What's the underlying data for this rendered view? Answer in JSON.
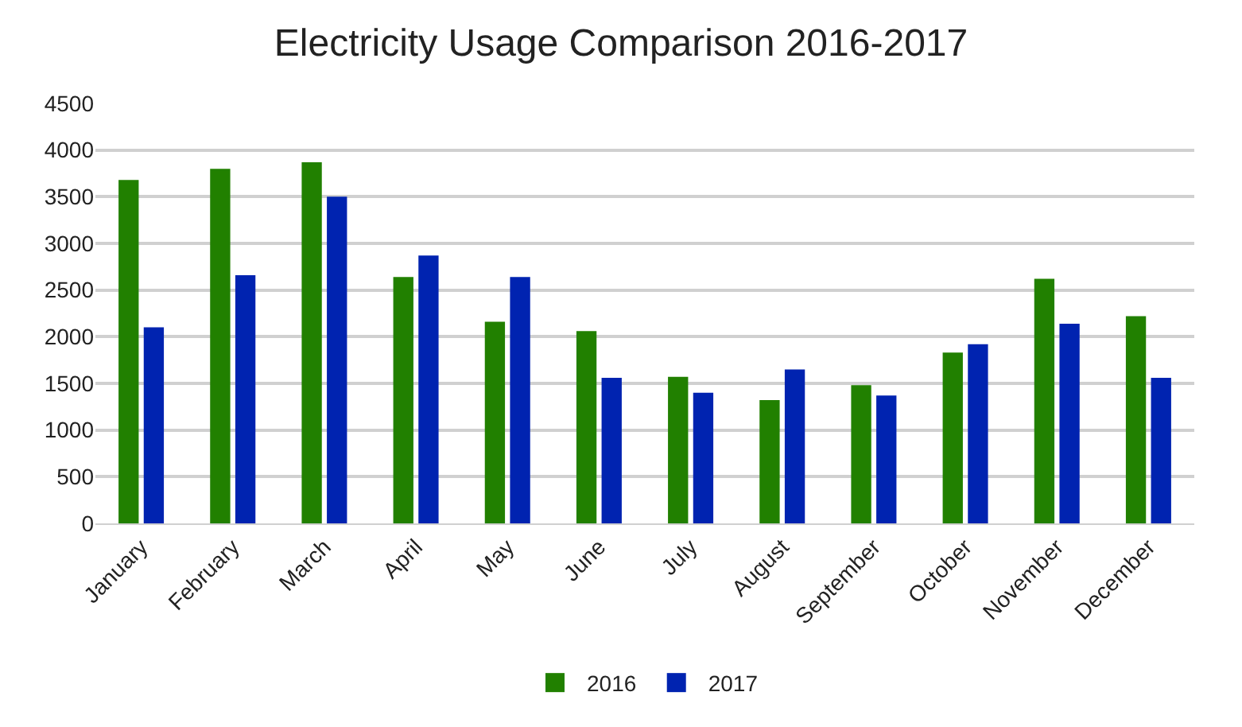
{
  "chart_data": {
    "type": "bar",
    "title": "Electricity Usage Comparison 2016-2017",
    "categories": [
      "January",
      "February",
      "March",
      "April",
      "May",
      "June",
      "July",
      "August",
      "September",
      "October",
      "November",
      "December"
    ],
    "series": [
      {
        "name": "2016",
        "color": "#218000",
        "values": [
          3680,
          3800,
          3870,
          2640,
          2160,
          2060,
          1570,
          1320,
          1480,
          1830,
          2620,
          2220
        ]
      },
      {
        "name": "2017",
        "color": "#0023b0",
        "values": [
          2100,
          2660,
          3500,
          2870,
          2640,
          1560,
          1400,
          1650,
          1370,
          1920,
          2140,
          1560
        ]
      }
    ],
    "ylim": [
      0,
      4500
    ],
    "yticks": [
      0,
      500,
      1000,
      1500,
      2000,
      2500,
      3000,
      3500,
      4000,
      4500
    ],
    "grid": "y",
    "legend": "bottom"
  }
}
